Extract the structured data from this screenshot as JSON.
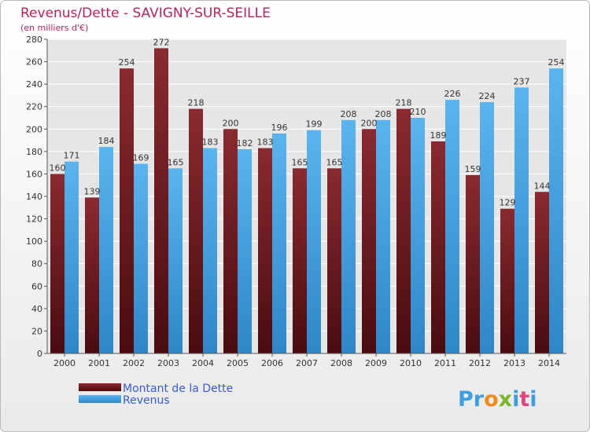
{
  "chart_data": {
    "type": "bar",
    "title": "Revenus/Dette - SAVIGNY-SUR-SEILLE",
    "subtitle": "(en milliers d'€)",
    "categories": [
      "2000",
      "2001",
      "2002",
      "2003",
      "2004",
      "2005",
      "2006",
      "2007",
      "2008",
      "2009",
      "2010",
      "2011",
      "2012",
      "2013",
      "2014"
    ],
    "series": [
      {
        "name": "Montant de la Dette",
        "values": [
          160,
          139,
          254,
          272,
          218,
          200,
          183,
          165,
          165,
          200,
          218,
          189,
          159,
          129,
          144
        ]
      },
      {
        "name": "Revenus",
        "values": [
          171,
          184,
          169,
          165,
          183,
          182,
          196,
          199,
          208,
          208,
          210,
          226,
          224,
          237,
          254
        ]
      }
    ],
    "ylim": [
      0,
      280
    ],
    "yticks": [
      0,
      20,
      40,
      60,
      80,
      100,
      120,
      140,
      160,
      180,
      200,
      220,
      240,
      260,
      280
    ],
    "grid": true,
    "legend": "bottom-left"
  },
  "colors": {
    "dette": "#6b1a1e",
    "revenus": "#3e9fe0",
    "plot_bg": "#e6e6e6"
  },
  "watermark": "Proxiti"
}
